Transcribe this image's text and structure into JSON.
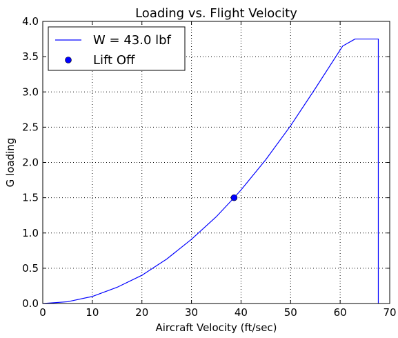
{
  "chart_data": {
    "type": "line",
    "title": "Loading vs. Flight Velocity",
    "xlabel": "Aircraft Velocity (ft/sec)",
    "ylabel": "G loading",
    "xlim": [
      0,
      70
    ],
    "ylim": [
      0,
      4.0
    ],
    "xticks": [
      0,
      10,
      20,
      30,
      40,
      50,
      60,
      70
    ],
    "xtick_labels": [
      "0",
      "10",
      "20",
      "30",
      "40",
      "50",
      "60",
      "70"
    ],
    "yticks": [
      0,
      0.5,
      1.0,
      1.5,
      2.0,
      2.5,
      3.0,
      3.5,
      4.0
    ],
    "ytick_labels": [
      "0.0",
      "0.5",
      "1.0",
      "1.5",
      "2.0",
      "2.5",
      "3.0",
      "3.5",
      "4.0"
    ],
    "grid": true,
    "legend_position": "top-left",
    "series": [
      {
        "name": "W = 43.0 lbf",
        "kind": "line",
        "color": "#0000ff",
        "x": [
          0,
          5,
          10,
          15,
          20,
          25,
          30,
          35,
          38.6,
          40,
          45,
          50,
          55,
          60.5,
          63,
          67.7,
          67.7
        ],
        "y": [
          0,
          0.025,
          0.1,
          0.23,
          0.4,
          0.63,
          0.91,
          1.23,
          1.5,
          1.61,
          2.04,
          2.52,
          3.05,
          3.65,
          3.75,
          3.75,
          0
        ]
      },
      {
        "name": "Lift Off",
        "kind": "marker",
        "color": "#0000ff",
        "x": [
          38.6
        ],
        "y": [
          1.5
        ]
      }
    ]
  }
}
